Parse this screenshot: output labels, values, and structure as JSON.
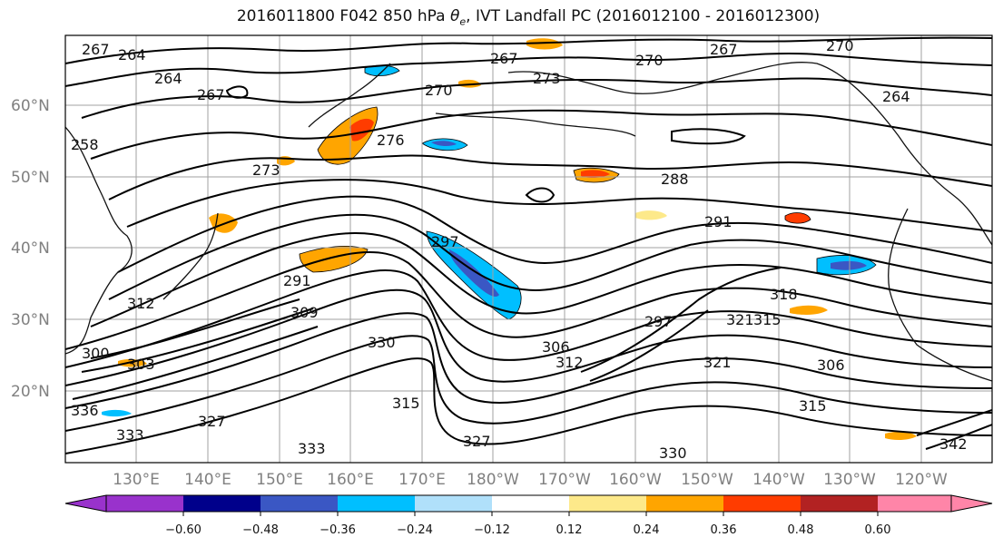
{
  "title": {
    "prefix": "2016011800 F042 850 hPa ",
    "theta": "θ",
    "theta_sub": "e",
    "suffix": ", IVT Landfall PC (2016012100 - 2016012300)"
  },
  "map": {
    "lat_labels": [
      "60°N",
      "50°N",
      "40°N",
      "30°N",
      "20°N"
    ],
    "lon_labels": [
      "130°E",
      "140°E",
      "150°E",
      "160°E",
      "170°E",
      "180°W",
      "170°W",
      "160°W",
      "150°W",
      "140°W",
      "130°W",
      "120°W"
    ],
    "contour_labels": [
      "267",
      "264",
      "264",
      "267",
      "258",
      "273",
      "276",
      "270",
      "273",
      "267",
      "270",
      "267",
      "270",
      "264",
      "288",
      "291",
      "291",
      "297",
      "297",
      "309",
      "306",
      "312",
      "300",
      "303",
      "336",
      "333",
      "330",
      "327",
      "321",
      "318",
      "315",
      "306",
      "315",
      "321",
      "312",
      "315",
      "327",
      "333",
      "330",
      "342"
    ],
    "colors": {
      "land_outline": "#111111",
      "contour": "#000000",
      "grid": "#a0a0a0"
    }
  },
  "colorbar": {
    "ticks": [
      "−0.60",
      "−0.48",
      "−0.36",
      "−0.24",
      "−0.12",
      "0.12",
      "0.24",
      "0.36",
      "0.48",
      "0.60"
    ],
    "colors": [
      "#9932cc",
      "#00008b",
      "#3a57c4",
      "#00bfff",
      "#b0e0fa",
      "#ffffff",
      "#fde98a",
      "#ffa500",
      "#ff3c00",
      "#b22222",
      "#ff85a8"
    ]
  }
}
